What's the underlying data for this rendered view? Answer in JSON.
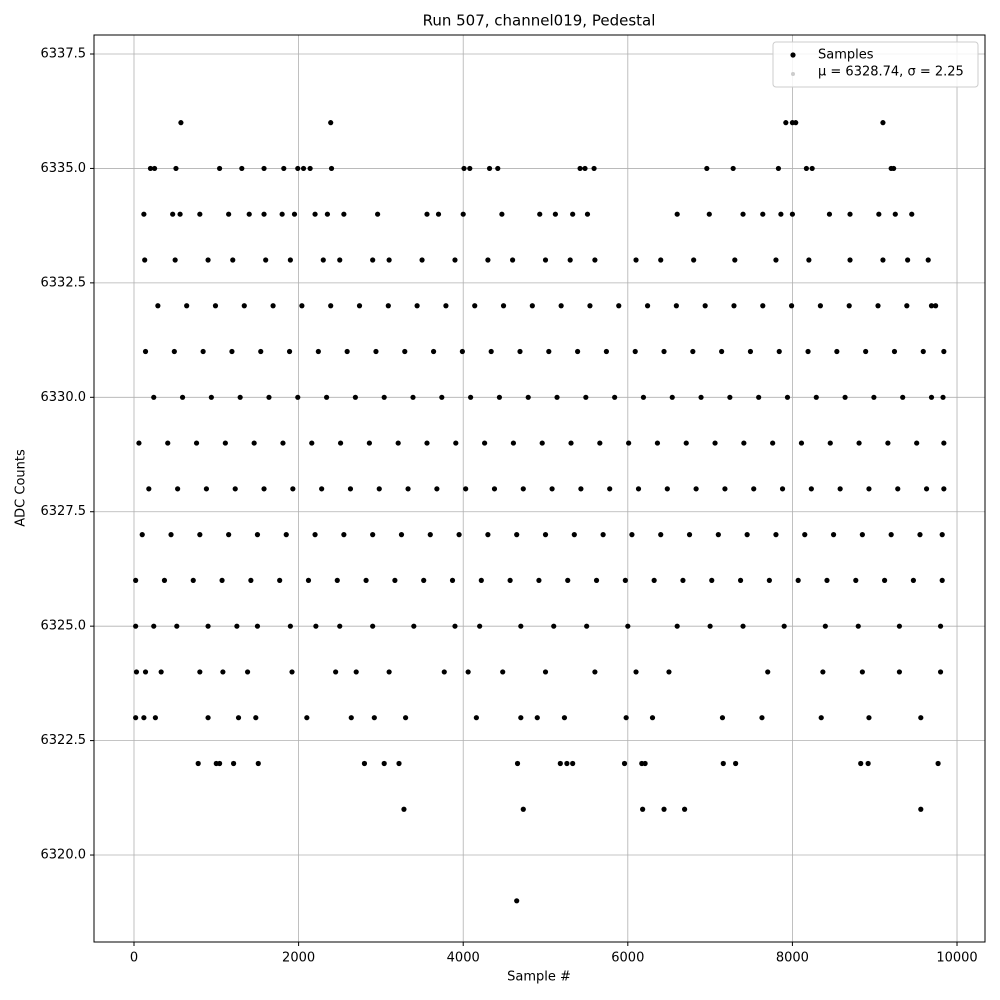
{
  "chart_data": {
    "type": "scatter",
    "title": "Run 507, channel019, Pedestal",
    "x_label": "Sample #",
    "y_label": "ADC Counts",
    "xlim": [
      -486,
      10340
    ],
    "ylim": [
      6318.1,
      6337.915
    ],
    "xticks": [
      0,
      2000,
      4000,
      6000,
      8000,
      10000
    ],
    "yticks": [
      {
        "value": 6320,
        "label": "6320.0"
      },
      {
        "value": 6322.5,
        "label": "6322.5"
      },
      {
        "value": 6325,
        "label": "6325.0"
      },
      {
        "value": 6327.5,
        "label": "6327.5"
      },
      {
        "value": 6330,
        "label": "6330.0"
      },
      {
        "value": 6332.5,
        "label": "6332.5"
      },
      {
        "value": 6335,
        "label": "6335.0"
      },
      {
        "value": 6337.5,
        "label": "6337.5"
      }
    ],
    "grid": true,
    "legend": "upper right",
    "series": [
      {
        "name": "Samples",
        "color": "#000000",
        "x": [
          4650,
          3280,
          4730,
          6180,
          6440,
          6690,
          9560,
          780,
          1000,
          1040,
          1210,
          1510,
          2800,
          3040,
          3220,
          4660,
          5180,
          5260,
          5330,
          5960,
          6170,
          6210,
          7160,
          7310,
          8830,
          8920,
          9770,
          20,
          120,
          260,
          900,
          1270,
          1480,
          2100,
          2640,
          2920,
          3300,
          4160,
          4700,
          4900,
          5230,
          5980,
          6300,
          7150,
          7630,
          8350,
          8930,
          9560,
          30,
          140,
          330,
          800,
          1080,
          1380,
          1920,
          2450,
          2700,
          3100,
          3770,
          4060,
          4480,
          5000,
          5600,
          6100,
          6500,
          7700,
          8370,
          8850,
          9300,
          9800,
          20,
          240,
          520,
          900,
          1250,
          1500,
          1900,
          2210,
          2500,
          2900,
          3400,
          3900,
          4200,
          4700,
          5100,
          5500,
          6000,
          6600,
          7000,
          7400,
          7900,
          8400,
          8800,
          9300,
          9800,
          20,
          370,
          720,
          1070,
          1420,
          1770,
          2120,
          2470,
          2820,
          3170,
          3520,
          3870,
          4220,
          4570,
          4920,
          5270,
          5620,
          5970,
          6320,
          6670,
          7020,
          7370,
          7720,
          8070,
          8420,
          8770,
          9120,
          9470,
          9820,
          100,
          450,
          800,
          1150,
          1500,
          1850,
          2200,
          2550,
          2900,
          3250,
          3600,
          3950,
          4300,
          4650,
          5000,
          5350,
          5700,
          6050,
          6400,
          6750,
          7100,
          7450,
          7800,
          8150,
          8500,
          8850,
          9200,
          9550,
          9820,
          180,
          530,
          880,
          1230,
          1580,
          1930,
          2280,
          2630,
          2980,
          3330,
          3680,
          4030,
          4380,
          4730,
          5080,
          5430,
          5780,
          6130,
          6480,
          6830,
          7180,
          7530,
          7880,
          8230,
          8580,
          8930,
          9280,
          9630,
          9840,
          60,
          410,
          760,
          1110,
          1460,
          1810,
          2160,
          2510,
          2860,
          3210,
          3560,
          3910,
          4260,
          4610,
          4960,
          5310,
          5660,
          6010,
          6360,
          6710,
          7060,
          7410,
          7760,
          8110,
          8460,
          8810,
          9160,
          9510,
          9840,
          240,
          590,
          940,
          1290,
          1640,
          1990,
          2340,
          2690,
          3040,
          3390,
          3740,
          4090,
          4440,
          4790,
          5140,
          5490,
          5840,
          6190,
          6540,
          6890,
          7240,
          7590,
          7940,
          8290,
          8640,
          8990,
          9340,
          9690,
          9830,
          140,
          490,
          840,
          1190,
          1540,
          1890,
          2240,
          2590,
          2940,
          3290,
          3640,
          3990,
          4340,
          4690,
          5040,
          5390,
          5740,
          6090,
          6440,
          6790,
          7140,
          7490,
          7840,
          8190,
          8540,
          8890,
          9240,
          9590,
          9840,
          290,
          640,
          990,
          1340,
          1690,
          2040,
          2390,
          2740,
          3090,
          3440,
          3790,
          4140,
          4490,
          4840,
          5190,
          5540,
          5890,
          6240,
          6590,
          6940,
          7290,
          7640,
          7990,
          8340,
          8690,
          9040,
          9390,
          9690,
          9740,
          130,
          500,
          900,
          1200,
          1600,
          1900,
          2300,
          2500,
          2900,
          3100,
          3500,
          3900,
          4300,
          4600,
          5000,
          5300,
          5600,
          6100,
          6400,
          6800,
          7300,
          7800,
          8200,
          8700,
          9100,
          9400,
          9650,
          120,
          470,
          560,
          800,
          1150,
          1400,
          1580,
          1800,
          1950,
          2200,
          2350,
          2550,
          2960,
          3560,
          3700,
          4000,
          4470,
          4930,
          5120,
          5330,
          5510,
          6600,
          6990,
          7400,
          7640,
          7860,
          8000,
          8450,
          8700,
          9050,
          9250,
          9450,
          200,
          250,
          510,
          1040,
          1310,
          1580,
          1820,
          1990,
          2060,
          2140,
          2400,
          4010,
          4080,
          4320,
          4420,
          5420,
          5480,
          5590,
          6960,
          7280,
          7830,
          8170,
          8240,
          9200,
          9230,
          570,
          2390,
          7920,
          8000,
          8040,
          9100
        ],
        "y": [
          6319,
          6321,
          6321,
          6321,
          6321,
          6321,
          6321,
          6322,
          6322,
          6322,
          6322,
          6322,
          6322,
          6322,
          6322,
          6322,
          6322,
          6322,
          6322,
          6322,
          6322,
          6322,
          6322,
          6322,
          6322,
          6322,
          6322,
          6323,
          6323,
          6323,
          6323,
          6323,
          6323,
          6323,
          6323,
          6323,
          6323,
          6323,
          6323,
          6323,
          6323,
          6323,
          6323,
          6323,
          6323,
          6323,
          6323,
          6323,
          6324,
          6324,
          6324,
          6324,
          6324,
          6324,
          6324,
          6324,
          6324,
          6324,
          6324,
          6324,
          6324,
          6324,
          6324,
          6324,
          6324,
          6324,
          6324,
          6324,
          6324,
          6324,
          6325,
          6325,
          6325,
          6325,
          6325,
          6325,
          6325,
          6325,
          6325,
          6325,
          6325,
          6325,
          6325,
          6325,
          6325,
          6325,
          6325,
          6325,
          6325,
          6325,
          6325,
          6325,
          6325,
          6325,
          6325,
          6326,
          6326,
          6326,
          6326,
          6326,
          6326,
          6326,
          6326,
          6326,
          6326,
          6326,
          6326,
          6326,
          6326,
          6326,
          6326,
          6326,
          6326,
          6326,
          6326,
          6326,
          6326,
          6326,
          6326,
          6326,
          6326,
          6326,
          6326,
          6326,
          6327,
          6327,
          6327,
          6327,
          6327,
          6327,
          6327,
          6327,
          6327,
          6327,
          6327,
          6327,
          6327,
          6327,
          6327,
          6327,
          6327,
          6327,
          6327,
          6327,
          6327,
          6327,
          6327,
          6327,
          6327,
          6327,
          6327,
          6327,
          6327,
          6328,
          6328,
          6328,
          6328,
          6328,
          6328,
          6328,
          6328,
          6328,
          6328,
          6328,
          6328,
          6328,
          6328,
          6328,
          6328,
          6328,
          6328,
          6328,
          6328,
          6328,
          6328,
          6328,
          6328,
          6328,
          6328,
          6328,
          6328,
          6328,
          6329,
          6329,
          6329,
          6329,
          6329,
          6329,
          6329,
          6329,
          6329,
          6329,
          6329,
          6329,
          6329,
          6329,
          6329,
          6329,
          6329,
          6329,
          6329,
          6329,
          6329,
          6329,
          6329,
          6329,
          6329,
          6329,
          6329,
          6329,
          6329,
          6330,
          6330,
          6330,
          6330,
          6330,
          6330,
          6330,
          6330,
          6330,
          6330,
          6330,
          6330,
          6330,
          6330,
          6330,
          6330,
          6330,
          6330,
          6330,
          6330,
          6330,
          6330,
          6330,
          6330,
          6330,
          6330,
          6330,
          6330,
          6330,
          6331,
          6331,
          6331,
          6331,
          6331,
          6331,
          6331,
          6331,
          6331,
          6331,
          6331,
          6331,
          6331,
          6331,
          6331,
          6331,
          6331,
          6331,
          6331,
          6331,
          6331,
          6331,
          6331,
          6331,
          6331,
          6331,
          6331,
          6331,
          6331,
          6332,
          6332,
          6332,
          6332,
          6332,
          6332,
          6332,
          6332,
          6332,
          6332,
          6332,
          6332,
          6332,
          6332,
          6332,
          6332,
          6332,
          6332,
          6332,
          6332,
          6332,
          6332,
          6332,
          6332,
          6332,
          6332,
          6332,
          6332,
          6332,
          6333,
          6333,
          6333,
          6333,
          6333,
          6333,
          6333,
          6333,
          6333,
          6333,
          6333,
          6333,
          6333,
          6333,
          6333,
          6333,
          6333,
          6333,
          6333,
          6333,
          6333,
          6333,
          6333,
          6333,
          6333,
          6333,
          6333,
          6334,
          6334,
          6334,
          6334,
          6334,
          6334,
          6334,
          6334,
          6334,
          6334,
          6334,
          6334,
          6334,
          6334,
          6334,
          6334,
          6334,
          6334,
          6334,
          6334,
          6334,
          6334,
          6334,
          6334,
          6334,
          6334,
          6334,
          6334,
          6334,
          6334,
          6334,
          6334,
          6335,
          6335,
          6335,
          6335,
          6335,
          6335,
          6335,
          6335,
          6335,
          6335,
          6335,
          6335,
          6335,
          6335,
          6335,
          6335,
          6335,
          6335,
          6335,
          6335,
          6335,
          6335,
          6335,
          6335,
          6335,
          6336,
          6336,
          6336,
          6336,
          6336,
          6336
        ]
      },
      {
        "name": "μ = 6328.74, σ = 2.25",
        "color": "#cccccc",
        "x": [],
        "y": []
      }
    ]
  }
}
